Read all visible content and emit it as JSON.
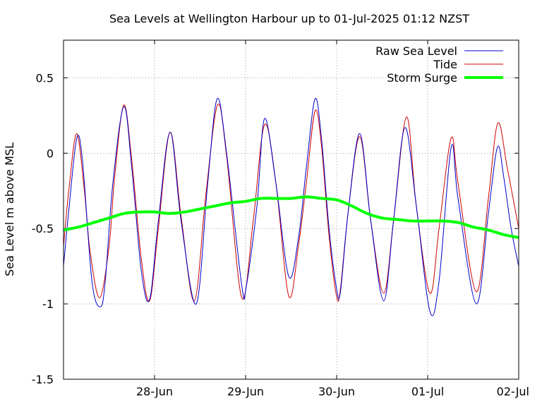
{
  "chart_data": {
    "type": "line",
    "title": "Sea Levels at Wellington Harbour up to 01-Jul-2025 01:12 NZST",
    "xlabel": "",
    "ylabel": "Sea Level m above MSL",
    "x_unit": "hour",
    "xlim": [
      0,
      120
    ],
    "ylim": [
      -1.5,
      0.75
    ],
    "x_ticks": [
      {
        "x": 24,
        "label": "28-Jun"
      },
      {
        "x": 48,
        "label": "29-Jun"
      },
      {
        "x": 72,
        "label": "30-Jun"
      },
      {
        "x": 96,
        "label": "01-Jul"
      },
      {
        "x": 120,
        "label": "02-Jul"
      }
    ],
    "y_ticks": [
      {
        "y": 0.5,
        "label": "0.5"
      },
      {
        "y": 0,
        "label": "0"
      },
      {
        "y": -0.5,
        "label": "-0.5"
      },
      {
        "y": -1,
        "label": "-1"
      },
      {
        "y": -1.5,
        "label": "-1.5"
      }
    ],
    "grid": true,
    "legend_position": "top-right",
    "series": [
      {
        "name": "Raw Sea Level",
        "color": "#0000cc",
        "width": 1,
        "points": [
          [
            0,
            -0.75
          ],
          [
            1.5,
            -0.35
          ],
          [
            3.5,
            0.1
          ],
          [
            5,
            -0.05
          ],
          [
            7.5,
            -0.85
          ],
          [
            9.7,
            -1.02
          ],
          [
            11,
            -0.85
          ],
          [
            13,
            -0.2
          ],
          [
            15.9,
            0.31
          ],
          [
            18,
            -0.1
          ],
          [
            20.5,
            -0.78
          ],
          [
            22.7,
            -0.97
          ],
          [
            25,
            -0.45
          ],
          [
            28.1,
            0.14
          ],
          [
            31,
            -0.45
          ],
          [
            35,
            -1.0
          ],
          [
            38,
            -0.2
          ],
          [
            40.5,
            0.36
          ],
          [
            43,
            0.0
          ],
          [
            47,
            -0.88
          ],
          [
            48.2,
            -0.88
          ],
          [
            51,
            -0.35
          ],
          [
            53,
            0.23
          ],
          [
            56,
            -0.2
          ],
          [
            59.4,
            -0.82
          ],
          [
            62,
            -0.55
          ],
          [
            64,
            -0.1
          ],
          [
            66.3,
            0.36
          ],
          [
            68,
            0.1
          ],
          [
            70,
            -0.5
          ],
          [
            72,
            -0.9
          ],
          [
            73,
            -0.92
          ],
          [
            75,
            -0.4
          ],
          [
            78.1,
            0.13
          ],
          [
            81,
            -0.45
          ],
          [
            84.4,
            -0.98
          ],
          [
            87,
            -0.45
          ],
          [
            90,
            0.17
          ],
          [
            93,
            -0.35
          ],
          [
            96.6,
            -1.05
          ],
          [
            99,
            -0.85
          ],
          [
            102.2,
            0.04
          ],
          [
            104,
            -0.3
          ],
          [
            108.8,
            -1.0
          ],
          [
            112,
            -0.4
          ],
          [
            114.4,
            0.04
          ],
          [
            116,
            -0.15
          ],
          [
            118,
            -0.5
          ],
          [
            120,
            -0.75
          ]
        ]
      },
      {
        "name": "Tide",
        "color": "#cc0000",
        "width": 1,
        "points": [
          [
            0,
            -0.62
          ],
          [
            1.5,
            -0.22
          ],
          [
            3.5,
            0.13
          ],
          [
            5.5,
            -0.25
          ],
          [
            7,
            -0.65
          ],
          [
            9.5,
            -0.96
          ],
          [
            12,
            -0.62
          ],
          [
            13.5,
            -0.15
          ],
          [
            15.9,
            0.32
          ],
          [
            18,
            -0.05
          ],
          [
            20.5,
            -0.7
          ],
          [
            22.7,
            -0.98
          ],
          [
            25,
            -0.5
          ],
          [
            28.1,
            0.14
          ],
          [
            31,
            -0.42
          ],
          [
            34.5,
            -0.98
          ],
          [
            37.5,
            -0.28
          ],
          [
            40.6,
            0.32
          ],
          [
            43,
            -0.02
          ],
          [
            47,
            -0.96
          ],
          [
            50,
            -0.45
          ],
          [
            53,
            0.19
          ],
          [
            56,
            -0.2
          ],
          [
            59.4,
            -0.95
          ],
          [
            62,
            -0.6
          ],
          [
            64,
            -0.2
          ],
          [
            66.3,
            0.28
          ],
          [
            68,
            0.05
          ],
          [
            70,
            -0.55
          ],
          [
            72,
            -0.95
          ],
          [
            73,
            -0.9
          ],
          [
            75,
            -0.4
          ],
          [
            78.1,
            0.11
          ],
          [
            81,
            -0.45
          ],
          [
            84.4,
            -0.93
          ],
          [
            87,
            -0.45
          ],
          [
            90.4,
            0.24
          ],
          [
            93,
            -0.35
          ],
          [
            96.6,
            -0.93
          ],
          [
            99,
            -0.5
          ],
          [
            102.2,
            0.1
          ],
          [
            104,
            -0.2
          ],
          [
            108.8,
            -0.92
          ],
          [
            112,
            -0.3
          ],
          [
            114.5,
            0.2
          ],
          [
            117,
            -0.1
          ],
          [
            120,
            -0.5
          ]
        ]
      },
      {
        "name": "Storm Surge",
        "color": "#00ff00",
        "width": 4,
        "points": [
          [
            0,
            -0.51
          ],
          [
            4,
            -0.49
          ],
          [
            8,
            -0.46
          ],
          [
            12,
            -0.43
          ],
          [
            16,
            -0.4
          ],
          [
            20,
            -0.39
          ],
          [
            24,
            -0.39
          ],
          [
            28,
            -0.4
          ],
          [
            32,
            -0.39
          ],
          [
            36,
            -0.37
          ],
          [
            40,
            -0.35
          ],
          [
            44,
            -0.33
          ],
          [
            48,
            -0.32
          ],
          [
            52,
            -0.3
          ],
          [
            56,
            -0.3
          ],
          [
            60,
            -0.3
          ],
          [
            64,
            -0.29
          ],
          [
            68,
            -0.3
          ],
          [
            72,
            -0.31
          ],
          [
            76,
            -0.35
          ],
          [
            80,
            -0.4
          ],
          [
            84,
            -0.43
          ],
          [
            88,
            -0.44
          ],
          [
            92,
            -0.45
          ],
          [
            96,
            -0.45
          ],
          [
            100,
            -0.45
          ],
          [
            104,
            -0.46
          ],
          [
            108,
            -0.49
          ],
          [
            112,
            -0.51
          ],
          [
            116,
            -0.54
          ],
          [
            120,
            -0.56
          ]
        ]
      }
    ]
  }
}
